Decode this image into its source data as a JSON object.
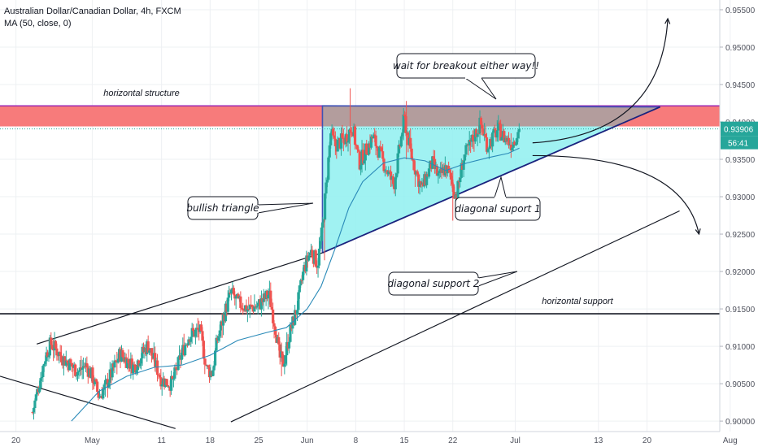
{
  "header": {
    "symbol_line": "Australian Dollar/Canadian Dollar, 4h, FXCM",
    "indicator_line": "MA (50, close, 0)"
  },
  "price_badge": {
    "value": "0.93906",
    "countdown": "56:41",
    "color": "#26a69a"
  },
  "colors": {
    "up": "#26a69a",
    "down": "#ef5350",
    "ma": "#2a8ab8",
    "resistance_zone": "#f77b7b",
    "triangle_top": "#a7a3a3",
    "triangle_bottom": "#8ff0f0",
    "accent_line": "#9c27b0"
  },
  "annotations": {
    "horizontal_structure": "horizontal structure",
    "wait_breakout": "wait for breakout either way!!",
    "bullish_triangle": "bullish triangle",
    "diagonal_support_1": "diagonal suport 1",
    "diagonal_support_2": "diagonal support 2",
    "horizontal_support": "horizontal support"
  },
  "chart_data": {
    "type": "candlestick",
    "title": "Australian Dollar/Canadian Dollar, 4h, FXCM",
    "x_ticks": [
      {
        "label": "20",
        "day": -11
      },
      {
        "label": "May",
        "day": 0
      },
      {
        "label": "11",
        "day": 10
      },
      {
        "label": "18",
        "day": 17
      },
      {
        "label": "25",
        "day": 24
      },
      {
        "label": "Jun",
        "day": 31
      },
      {
        "label": "8",
        "day": 38
      },
      {
        "label": "15",
        "day": 45
      },
      {
        "label": "22",
        "day": 52
      },
      {
        "label": "Jul",
        "day": 61
      },
      {
        "label": "13",
        "day": 73
      },
      {
        "label": "20",
        "day": 80
      },
      {
        "label": "Aug",
        "day": 92
      }
    ],
    "x_range_days": [
      -13.3,
      90.5
    ],
    "y_ticks": [
      "0.95500",
      "0.95000",
      "0.94500",
      "0.94000",
      "0.93500",
      "0.93000",
      "0.92500",
      "0.92000",
      "0.91500",
      "0.91000",
      "0.90500",
      "0.90000"
    ],
    "ylim": [
      0.8986,
      0.9563
    ],
    "last_price": 0.93906,
    "resistance_zone": [
      0.9394,
      0.94215
    ],
    "horizontal_support": 0.91435,
    "anchors": [
      [
        -8.6,
        0.9012
      ],
      [
        -6.8,
        0.9085
      ],
      [
        -6.0,
        0.9104
      ],
      [
        -4.0,
        0.9082
      ],
      [
        -2.0,
        0.9066
      ],
      [
        -1.0,
        0.9075
      ],
      [
        0.0,
        0.906
      ],
      [
        1.0,
        0.9032
      ],
      [
        2.0,
        0.9048
      ],
      [
        4.0,
        0.909
      ],
      [
        6.0,
        0.9072
      ],
      [
        8.0,
        0.9102
      ],
      [
        10.0,
        0.9055
      ],
      [
        11.5,
        0.905
      ],
      [
        13.0,
        0.9093
      ],
      [
        14.0,
        0.9115
      ],
      [
        15.5,
        0.9122
      ],
      [
        16.5,
        0.907
      ],
      [
        17.3,
        0.9064
      ],
      [
        18.0,
        0.9107
      ],
      [
        19.0,
        0.9142
      ],
      [
        20.0,
        0.9172
      ],
      [
        21.0,
        0.9158
      ],
      [
        22.5,
        0.915
      ],
      [
        24.0,
        0.9155
      ],
      [
        25.5,
        0.917
      ],
      [
        26.5,
        0.912
      ],
      [
        27.0,
        0.9085
      ],
      [
        27.6,
        0.9078
      ],
      [
        28.5,
        0.9118
      ],
      [
        29.5,
        0.915
      ],
      [
        30.5,
        0.9202
      ],
      [
        31.5,
        0.9228
      ],
      [
        32.5,
        0.921
      ],
      [
        33.2,
        0.9258
      ],
      [
        33.8,
        0.932
      ],
      [
        34.4,
        0.9385
      ],
      [
        35.0,
        0.9368
      ],
      [
        36.5,
        0.9378
      ],
      [
        37.5,
        0.9395
      ],
      [
        38.5,
        0.9345
      ],
      [
        40.5,
        0.938
      ],
      [
        42.0,
        0.9345
      ],
      [
        43.5,
        0.9315
      ],
      [
        45.0,
        0.9405
      ],
      [
        46.0,
        0.9355
      ],
      [
        47.5,
        0.931
      ],
      [
        49.0,
        0.9345
      ],
      [
        50.0,
        0.9325
      ],
      [
        51.0,
        0.934
      ],
      [
        51.8,
        0.932
      ],
      [
        52.5,
        0.93
      ],
      [
        53.5,
        0.935
      ],
      [
        55.0,
        0.938
      ],
      [
        56.0,
        0.9398
      ],
      [
        57.0,
        0.9368
      ],
      [
        58.5,
        0.939
      ],
      [
        59.5,
        0.9378
      ],
      [
        60.5,
        0.937
      ],
      [
        61.6,
        0.939
      ]
    ],
    "spikes": [
      {
        "day": 37.2,
        "high": 0.9445,
        "low": 0.9355
      },
      {
        "day": 45.3,
        "high": 0.9428,
        "low": 0.935
      },
      {
        "day": 52.0,
        "high": 0.9335,
        "low": 0.9268
      },
      {
        "day": 27.3,
        "high": 0.9105,
        "low": 0.906
      },
      {
        "day": 33.5,
        "high": 0.927,
        "low": 0.9215
      }
    ],
    "moving_average": [
      [
        -3.0,
        0.9
      ],
      [
        1.0,
        0.904
      ],
      [
        5.0,
        0.906
      ],
      [
        9.0,
        0.9072
      ],
      [
        13.0,
        0.9075
      ],
      [
        17.0,
        0.9088
      ],
      [
        21.0,
        0.9108
      ],
      [
        25.0,
        0.9118
      ],
      [
        28.0,
        0.9125
      ],
      [
        31.0,
        0.915
      ],
      [
        33.0,
        0.918
      ],
      [
        35.0,
        0.923
      ],
      [
        37.0,
        0.9285
      ],
      [
        39.0,
        0.932
      ],
      [
        42.0,
        0.9345
      ],
      [
        45.0,
        0.9352
      ],
      [
        48.0,
        0.9348
      ],
      [
        51.0,
        0.9335
      ],
      [
        54.0,
        0.9345
      ],
      [
        57.0,
        0.9352
      ],
      [
        60.0,
        0.9358
      ],
      [
        61.6,
        0.9365
      ]
    ],
    "triangle": {
      "apex": [
        81.9,
        0.942
      ],
      "base_top": [
        33.2,
        0.94215
      ],
      "base_bottom": [
        33.2,
        0.9225
      ],
      "mid_left": [
        33.2,
        0.9394
      ],
      "mid_right": [
        75.4,
        0.9394
      ]
    },
    "trendlines": [
      {
        "name": "diagonal support 1",
        "from": [
          33.2,
          0.9225
        ],
        "to": [
          81.9,
          0.942
        ]
      },
      {
        "name": "diagonal support 2",
        "from": [
          20.0,
          0.8999
        ],
        "to": [
          84.7,
          0.9281
        ]
      },
      {
        "name": "upper channel",
        "from": [
          -8.0,
          0.9103
        ],
        "to": [
          33.2,
          0.9225
        ]
      },
      {
        "name": "lower falling line",
        "from": [
          -13.3,
          0.906
        ],
        "to": [
          12.0,
          0.899
        ]
      }
    ],
    "projections": [
      {
        "direction": "up",
        "from": [
          63.5,
          0.9372
        ],
        "to": [
          83.0,
          0.9538
        ]
      },
      {
        "direction": "down",
        "from": [
          63.5,
          0.9355
        ],
        "to": [
          87.5,
          0.925
        ]
      }
    ]
  }
}
